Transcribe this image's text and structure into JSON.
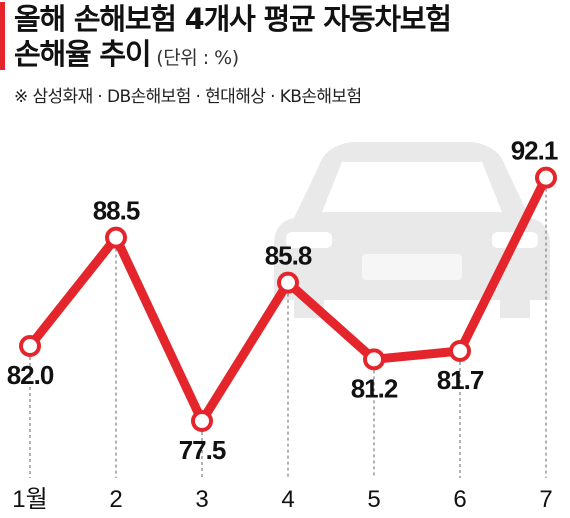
{
  "header": {
    "title_line1": "올해 손해보험 4개사 평균 자동차보험",
    "title_line2": "손해율 추이",
    "unit": "(단위 : %)",
    "note": "※ 삼성화재 · DB손해보험 · 현대해상 · KB손해보험"
  },
  "colors": {
    "accent": "#e4262c",
    "line": "#e4262c",
    "car": "#e9e9e9"
  },
  "background_icon": "car-front-icon",
  "chart_data": {
    "type": "line",
    "categories": [
      "1월",
      "2",
      "3",
      "4",
      "5",
      "6",
      "7"
    ],
    "values": [
      82.0,
      88.5,
      77.5,
      85.8,
      81.2,
      81.7,
      92.1
    ],
    "value_labels": [
      "82.0",
      "88.5",
      "77.5",
      "85.8",
      "81.2",
      "81.7",
      "92.1"
    ],
    "title": "올해 손해보험 4개사 평균 자동차보험 손해율 추이",
    "ylabel": "",
    "xlabel": "",
    "ylim": [
      76,
      94
    ],
    "grid": false,
    "legend": "none",
    "drop_lines": true
  }
}
